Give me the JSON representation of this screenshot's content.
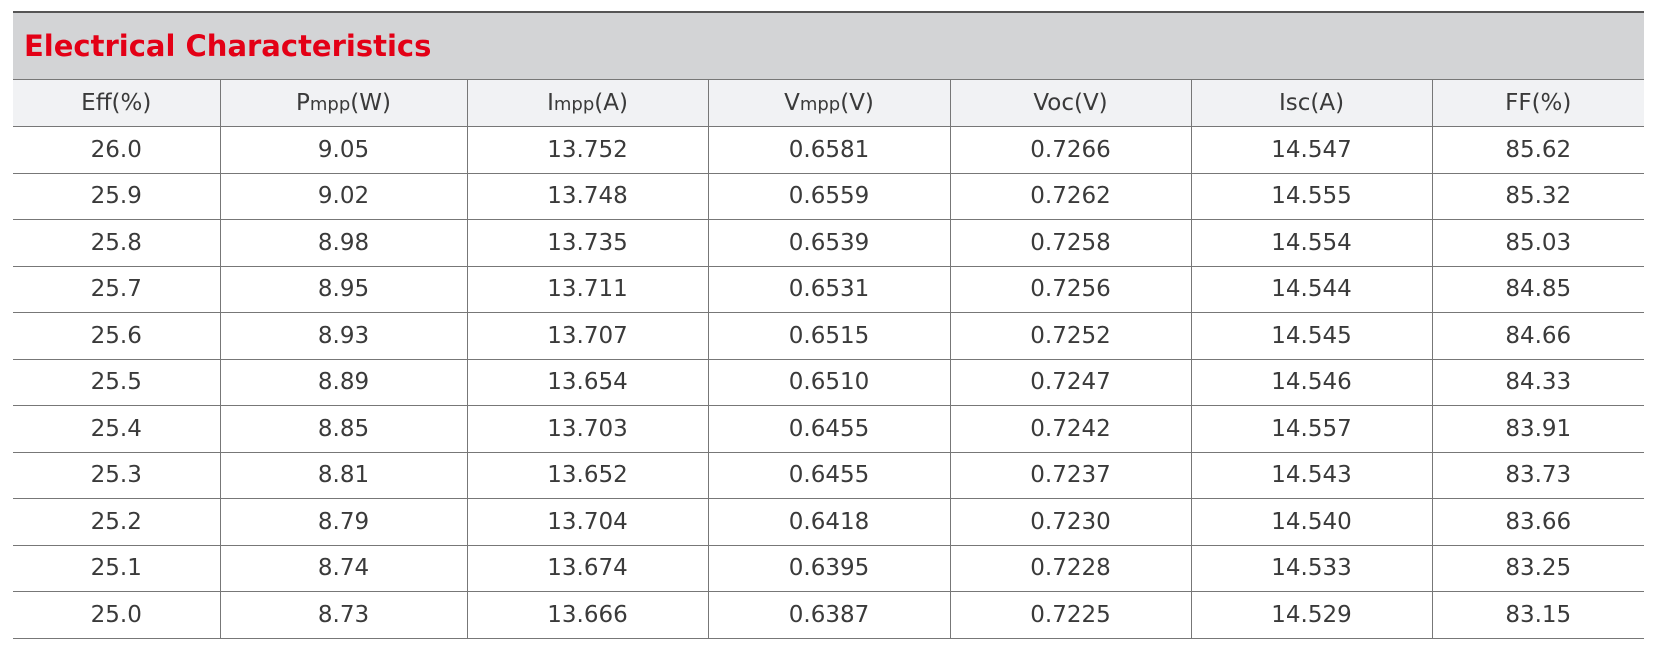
{
  "title": "Electrical Characteristics",
  "table": {
    "header": [
      {
        "main": "Eff(%)"
      },
      {
        "main": "P",
        "sub": "mpp",
        "unit": "(W)"
      },
      {
        "main": "I",
        "sub": "mpp",
        "unit": "(A)"
      },
      {
        "main": "V",
        "sub": "mpp",
        "unit": "(V)"
      },
      {
        "main": "Voc(V)"
      },
      {
        "main": "Isc(A)"
      },
      {
        "main": "FF(%)"
      }
    ],
    "rows": [
      [
        "26.0",
        "9.05",
        "13.752",
        "0.6581",
        "0.7266",
        "14.547",
        "85.62"
      ],
      [
        "25.9",
        "9.02",
        "13.748",
        "0.6559",
        "0.7262",
        "14.555",
        "85.32"
      ],
      [
        "25.8",
        "8.98",
        "13.735",
        "0.6539",
        "0.7258",
        "14.554",
        "85.03"
      ],
      [
        "25.7",
        "8.95",
        "13.711",
        "0.6531",
        "0.7256",
        "14.544",
        "84.85"
      ],
      [
        "25.6",
        "8.93",
        "13.707",
        "0.6515",
        "0.7252",
        "14.545",
        "84.66"
      ],
      [
        "25.5",
        "8.89",
        "13.654",
        "0.6510",
        "0.7247",
        "14.546",
        "84.33"
      ],
      [
        "25.4",
        "8.85",
        "13.703",
        "0.6455",
        "0.7242",
        "14.557",
        "83.91"
      ],
      [
        "25.3",
        "8.81",
        "13.652",
        "0.6455",
        "0.7237",
        "14.543",
        "83.73"
      ],
      [
        "25.2",
        "8.79",
        "13.704",
        "0.6418",
        "0.7230",
        "14.540",
        "83.66"
      ],
      [
        "25.1",
        "8.74",
        "13.674",
        "0.6395",
        "0.7228",
        "14.533",
        "83.25"
      ],
      [
        "25.0",
        "8.73",
        "13.666",
        "0.6387",
        "0.7225",
        "14.529",
        "83.15"
      ]
    ]
  }
}
